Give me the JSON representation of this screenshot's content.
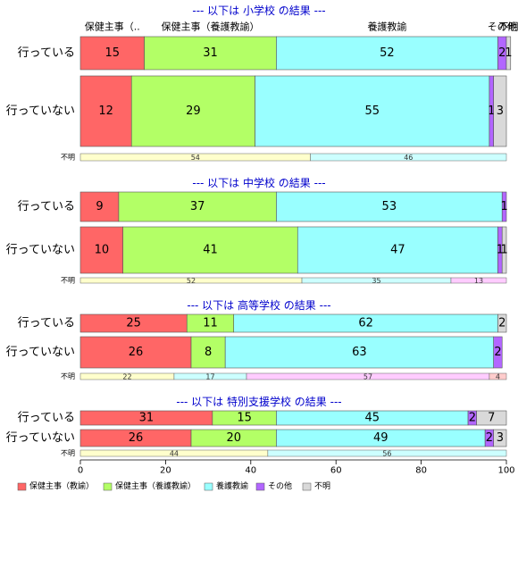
{
  "chart_data": {
    "type": "bar",
    "orientation": "horizontal-stacked-100",
    "xlim": [
      0,
      100
    ],
    "xticks": [
      "0",
      "20",
      "40",
      "60",
      "80",
      "100"
    ],
    "legend_position": "bottom-left",
    "colors": [
      "#ff6666",
      "#b3ff66",
      "#99ffff",
      "#b266ff",
      "#d9d9d9"
    ],
    "unknown_colors": [
      "#ffffcc",
      "#ccffff",
      "#ffccff",
      "#ffcccc"
    ],
    "legend": [
      "保健主事（教諭）",
      "保健主事（養護教諭）",
      "養護教諭",
      "その他",
      "不明"
    ],
    "column_header_labels": [
      "保健主事（..",
      "保健主事（養護教諭）",
      "養護教諭",
      "その他",
      "不明"
    ],
    "sections": [
      {
        "title": "--- 以下は 小学校 の結果 ---",
        "show_header": true,
        "rows": [
          {
            "label": "行っている",
            "values": [
              15,
              31,
              52,
              2,
              1
            ],
            "value_labels": [
              "15",
              "31",
              "52",
              "2",
              "1"
            ]
          },
          {
            "label": "行っていない",
            "values": [
              12,
              29,
              55,
              1,
              3
            ],
            "value_labels": [
              "12",
              "29",
              "55",
              "1",
              "3"
            ]
          }
        ],
        "unknown": {
          "label": "不明",
          "values": [
            54,
            46
          ],
          "value_labels": [
            "54",
            "46"
          ]
        }
      },
      {
        "title": "--- 以下は 中学校 の結果 ---",
        "show_header": false,
        "rows": [
          {
            "label": "行っている",
            "values": [
              9,
              37,
              53,
              1,
              0
            ],
            "value_labels": [
              "9",
              "37",
              "53",
              "1",
              ""
            ]
          },
          {
            "label": "行っていない",
            "values": [
              10,
              41,
              47,
              1,
              1
            ],
            "value_labels": [
              "10",
              "41",
              "47",
              "1",
              "1"
            ]
          }
        ],
        "unknown": {
          "label": "不明",
          "values": [
            52,
            35,
            13
          ],
          "value_labels": [
            "52",
            "35",
            "13"
          ]
        }
      },
      {
        "title": "--- 以下は 高等学校 の結果 ---",
        "show_header": false,
        "rows": [
          {
            "label": "行っている",
            "values": [
              25,
              11,
              62,
              0,
              2
            ],
            "value_labels": [
              "25",
              "11",
              "62",
              "",
              "2"
            ]
          },
          {
            "label": "行っていない",
            "values": [
              26,
              8,
              63,
              2,
              0
            ],
            "value_labels": [
              "26",
              "8",
              "63",
              "2",
              ""
            ]
          }
        ],
        "unknown": {
          "label": "不明",
          "values": [
            22,
            17,
            57,
            4
          ],
          "value_labels": [
            "22",
            "17",
            "57",
            "4"
          ]
        }
      },
      {
        "title": "--- 以下は 特別支援学校 の結果 ---",
        "show_header": false,
        "rows": [
          {
            "label": "行っている",
            "values": [
              31,
              15,
              45,
              2,
              7
            ],
            "value_labels": [
              "31",
              "15",
              "45",
              "2",
              "7"
            ]
          },
          {
            "label": "行っていない",
            "values": [
              26,
              20,
              49,
              2,
              3
            ],
            "value_labels": [
              "26",
              "20",
              "49",
              "2",
              "3"
            ]
          }
        ],
        "unknown": {
          "label": "不明",
          "values": [
            44,
            56
          ],
          "value_labels": [
            "44",
            "56"
          ]
        }
      }
    ]
  }
}
